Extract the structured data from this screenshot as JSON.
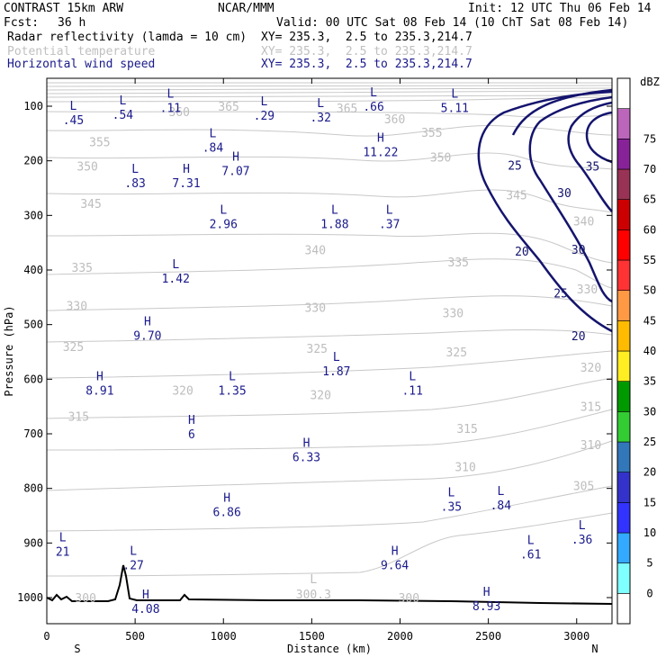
{
  "header": {
    "model": "CONTRAST 15km ARW",
    "center": "NCAR/MMM",
    "init": "Init: 12 UTC Thu 06 Feb 14",
    "fcst_label": "Fcst:",
    "fcst_value": "36 h",
    "valid": "Valid: 00 UTC Sat 08 Feb 14 (10 ChT Sat 08 Feb 14)"
  },
  "fields": [
    {
      "name": "Radar reflectivity (lamda = 10 cm)",
      "xy": "XY= 235.3,  2.5 to 235.3,214.7",
      "color": "#000000"
    },
    {
      "name": "Potential temperature",
      "xy": "XY= 235.3,  2.5 to 235.3,214.7",
      "color": "#c0c0c0"
    },
    {
      "name": "Horizontal wind speed",
      "xy": "XY= 235.3,  2.5 to 235.3,214.7",
      "color": "#1a1a8c"
    }
  ],
  "chart_data": {
    "type": "contour-cross-section",
    "xlabel": "Distance (km)",
    "ylabel": "Pressure (hPa)",
    "xlim": [
      0,
      3200
    ],
    "ylim": [
      1050,
      60
    ],
    "x_ticks": [
      "0",
      "500",
      "1000",
      "1500",
      "2000",
      "2500",
      "3000"
    ],
    "y_ticks": [
      "100",
      "200",
      "300",
      "400",
      "500",
      "600",
      "700",
      "800",
      "900",
      "1000"
    ],
    "x_end_labels": {
      "left": "S",
      "right": "N"
    },
    "colorbar": {
      "unit": "dBZ",
      "levels": [
        "0",
        "5",
        "10",
        "15",
        "20",
        "25",
        "30",
        "35",
        "40",
        "45",
        "50",
        "55",
        "60",
        "65",
        "70",
        "75"
      ],
      "colors": [
        "#ffffff",
        "#7fffff",
        "#33aaff",
        "#3333ff",
        "#3333cc",
        "#3377bb",
        "#33cc33",
        "#009900",
        "#ffee22",
        "#ffbb00",
        "#ff9944",
        "#ff3333",
        "#ff0000",
        "#cc0000",
        "#993355",
        "#882299",
        "#bb66bb",
        "#ffffff"
      ]
    },
    "theta_labels": [
      {
        "t": "360",
        "x": 750,
        "p": 110
      },
      {
        "t": "365",
        "x": 1030,
        "p": 100
      },
      {
        "t": "365",
        "x": 1700,
        "p": 103
      },
      {
        "t": "360",
        "x": 1970,
        "p": 123
      },
      {
        "t": "355",
        "x": 300,
        "p": 165
      },
      {
        "t": "355",
        "x": 2180,
        "p": 148
      },
      {
        "t": "350",
        "x": 230,
        "p": 210
      },
      {
        "t": "350",
        "x": 2230,
        "p": 193
      },
      {
        "t": "345",
        "x": 250,
        "p": 278
      },
      {
        "t": "345",
        "x": 2660,
        "p": 262
      },
      {
        "t": "340",
        "x": 1520,
        "p": 363
      },
      {
        "t": "340",
        "x": 3040,
        "p": 310
      },
      {
        "t": "335",
        "x": 200,
        "p": 395
      },
      {
        "t": "335",
        "x": 2330,
        "p": 385
      },
      {
        "t": "330",
        "x": 170,
        "p": 465
      },
      {
        "t": "330",
        "x": 1520,
        "p": 468
      },
      {
        "t": "330",
        "x": 2300,
        "p": 478
      },
      {
        "t": "330",
        "x": 3060,
        "p": 435
      },
      {
        "t": "325",
        "x": 150,
        "p": 540
      },
      {
        "t": "325",
        "x": 1530,
        "p": 543
      },
      {
        "t": "325",
        "x": 2320,
        "p": 550
      },
      {
        "t": "320",
        "x": 770,
        "p": 620
      },
      {
        "t": "320",
        "x": 1550,
        "p": 628
      },
      {
        "t": "320",
        "x": 3080,
        "p": 578
      },
      {
        "t": "315",
        "x": 180,
        "p": 668
      },
      {
        "t": "315",
        "x": 2380,
        "p": 690
      },
      {
        "t": "315",
        "x": 3080,
        "p": 650
      },
      {
        "t": "310",
        "x": 2370,
        "p": 760
      },
      {
        "t": "310",
        "x": 3080,
        "p": 720
      },
      {
        "t": "305",
        "x": 3040,
        "p": 795
      },
      {
        "t": "300",
        "x": 220,
        "p": 1000
      },
      {
        "t": "300",
        "x": 2050,
        "p": 1000
      }
    ],
    "wind_contours": [
      {
        "label": "35",
        "x": 3090,
        "p": 210
      },
      {
        "label": "30",
        "x": 2930,
        "p": 258
      },
      {
        "label": "30",
        "x": 3010,
        "p": 362
      },
      {
        "label": "25",
        "x": 2650,
        "p": 208
      },
      {
        "label": "25",
        "x": 2910,
        "p": 442
      },
      {
        "label": "20",
        "x": 2690,
        "p": 365
      },
      {
        "label": "20",
        "x": 3010,
        "p": 520
      }
    ],
    "extrema_theta": [
      {
        "type": "L",
        "value": "300.3",
        "x": 1510,
        "p": 965
      }
    ],
    "extrema_wind": [
      {
        "type": "L",
        "value": ".45",
        "x": 150,
        "p": 110
      },
      {
        "type": "L",
        "value": ".54",
        "x": 430,
        "p": 100
      },
      {
        "type": "L",
        "value": ".11",
        "x": 700,
        "p": 88
      },
      {
        "type": "L",
        "value": ".29",
        "x": 1230,
        "p": 102
      },
      {
        "type": "L",
        "value": ".32",
        "x": 1550,
        "p": 105
      },
      {
        "type": "L",
        "value": ".66",
        "x": 1850,
        "p": 85
      },
      {
        "type": "L",
        "value": "5.11",
        "x": 2310,
        "p": 88
      },
      {
        "type": "L",
        "value": ".84",
        "x": 940,
        "p": 160
      },
      {
        "type": "H",
        "value": "11.22",
        "x": 1890,
        "p": 168
      },
      {
        "type": "L",
        "value": ".83",
        "x": 500,
        "p": 225
      },
      {
        "type": "H",
        "value": "7.31",
        "x": 790,
        "p": 225
      },
      {
        "type": "H",
        "value": "7.07",
        "x": 1070,
        "p": 203
      },
      {
        "type": "L",
        "value": "2.96",
        "x": 1000,
        "p": 300
      },
      {
        "type": "L",
        "value": "1.88",
        "x": 1630,
        "p": 300
      },
      {
        "type": "L",
        "value": ".37",
        "x": 1940,
        "p": 300
      },
      {
        "type": "L",
        "value": "1.42",
        "x": 730,
        "p": 400
      },
      {
        "type": "H",
        "value": "9.70",
        "x": 570,
        "p": 505
      },
      {
        "type": "L",
        "value": "1.87",
        "x": 1640,
        "p": 570
      },
      {
        "type": "H",
        "value": "8.91",
        "x": 300,
        "p": 605
      },
      {
        "type": "L",
        "value": "1.35",
        "x": 1050,
        "p": 605
      },
      {
        "type": "L",
        "value": ".11",
        "x": 2070,
        "p": 605
      },
      {
        "type": "H",
        "value": "6",
        "x": 820,
        "p": 685
      },
      {
        "type": "H",
        "value": "6.33",
        "x": 1470,
        "p": 727
      },
      {
        "type": "L",
        "value": ".35",
        "x": 2290,
        "p": 818
      },
      {
        "type": "L",
        "value": ".84",
        "x": 2570,
        "p": 815
      },
      {
        "type": "H",
        "value": "6.86",
        "x": 1020,
        "p": 828
      },
      {
        "type": "L",
        "value": "21",
        "x": 90,
        "p": 900
      },
      {
        "type": "L",
        "value": ".36",
        "x": 3030,
        "p": 878
      },
      {
        "type": "L",
        "value": ".61",
        "x": 2740,
        "p": 905
      },
      {
        "type": "L",
        "value": ".27",
        "x": 490,
        "p": 925
      },
      {
        "type": "H",
        "value": "9.64",
        "x": 1970,
        "p": 925
      },
      {
        "type": "H",
        "value": "4.08",
        "x": 560,
        "p": 1005
      },
      {
        "type": "H",
        "value": "8.93",
        "x": 2490,
        "p": 1000
      }
    ]
  }
}
